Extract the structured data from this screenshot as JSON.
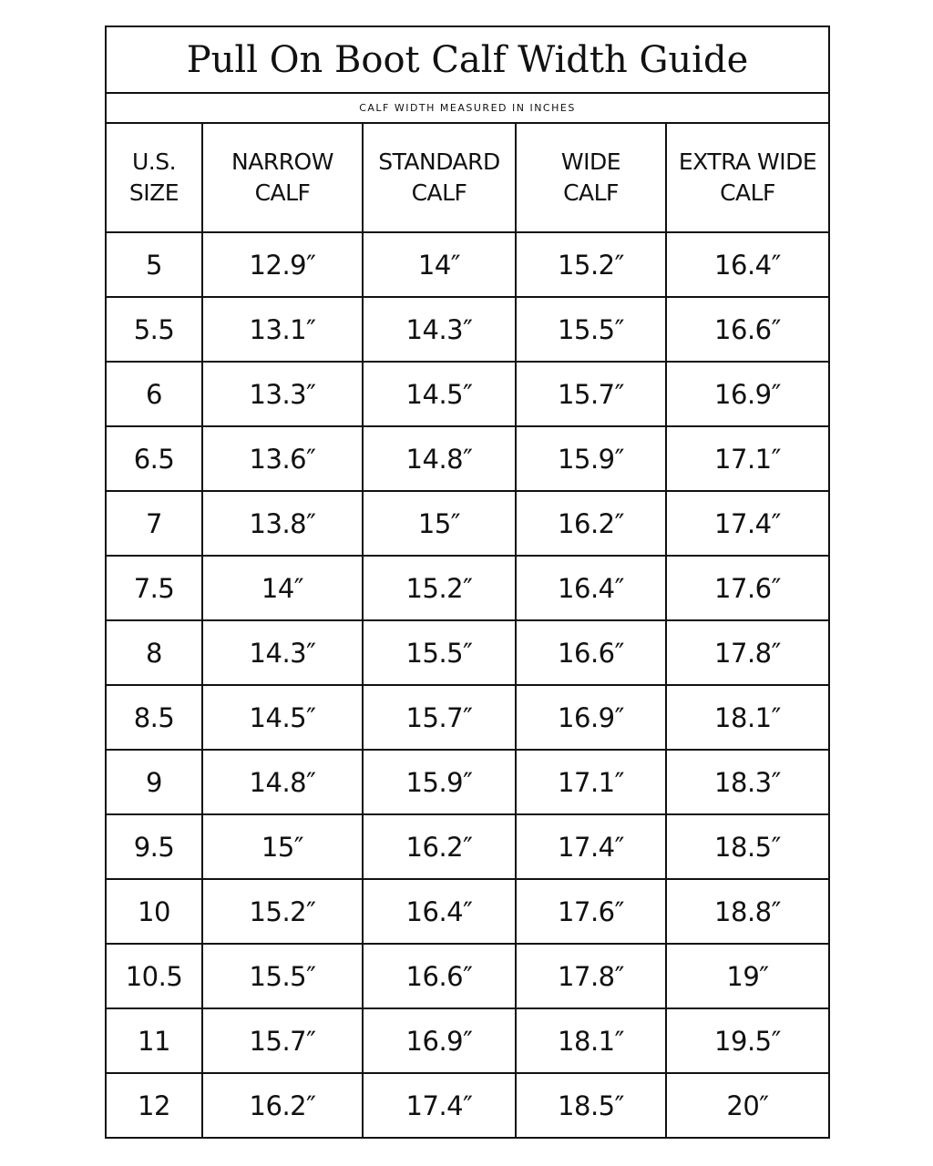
{
  "title": "Pull On Boot Calf Width Guide",
  "subtitle": "CALF WIDTH MEASURED IN INCHES",
  "columns": [
    {
      "line1": "U.S.",
      "line2": "SIZE"
    },
    {
      "line1": "NARROW",
      "line2": "CALF"
    },
    {
      "line1": "STANDARD",
      "line2": "CALF"
    },
    {
      "line1": "WIDE",
      "line2": "CALF"
    },
    {
      "line1": "EXTRA WIDE",
      "line2": "CALF"
    }
  ],
  "rows": [
    [
      "5",
      "12.9″",
      "14″",
      "15.2″",
      "16.4″"
    ],
    [
      "5.5",
      "13.1″",
      "14.3″",
      "15.5″",
      "16.6″"
    ],
    [
      "6",
      "13.3″",
      "14.5″",
      "15.7″",
      "16.9″"
    ],
    [
      "6.5",
      "13.6″",
      "14.8″",
      "15.9″",
      "17.1″"
    ],
    [
      "7",
      "13.8″",
      "15″",
      "16.2″",
      "17.4″"
    ],
    [
      "7.5",
      "14″",
      "15.2″",
      "16.4″",
      "17.6″"
    ],
    [
      "8",
      "14.3″",
      "15.5″",
      "16.6″",
      "17.8″"
    ],
    [
      "8.5",
      "14.5″",
      "15.7″",
      "16.9″",
      "18.1″"
    ],
    [
      "9",
      "14.8″",
      "15.9″",
      "17.1″",
      "18.3″"
    ],
    [
      "9.5",
      "15″",
      "16.2″",
      "17.4″",
      "18.5″"
    ],
    [
      "10",
      "15.2″",
      "16.4″",
      "17.6″",
      "18.8″"
    ],
    [
      "10.5",
      "15.5″",
      "16.6″",
      "17.8″",
      "19″"
    ],
    [
      "11",
      "15.7″",
      "16.9″",
      "18.1″",
      "19.5″"
    ],
    [
      "12",
      "16.2″",
      "17.4″",
      "18.5″",
      "20″"
    ]
  ]
}
